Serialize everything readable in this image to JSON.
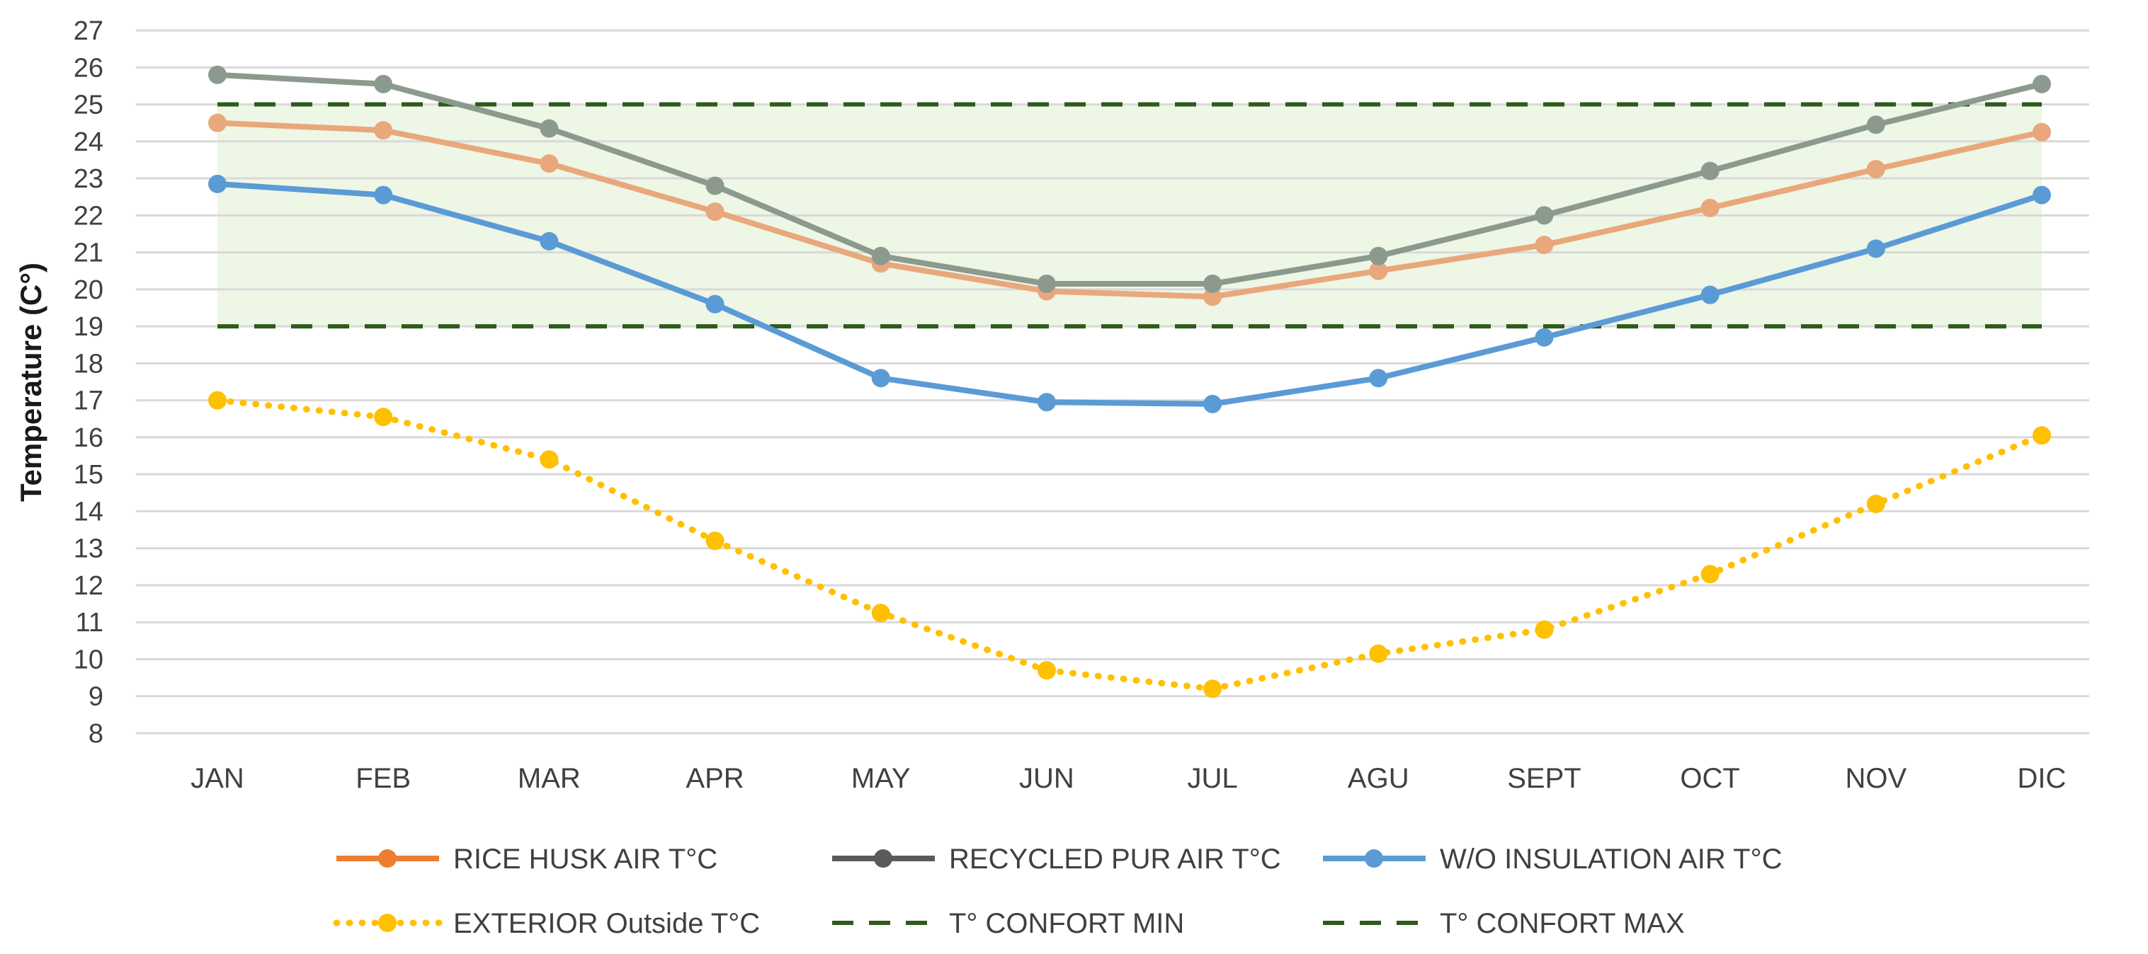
{
  "chart_data": {
    "type": "line",
    "title": "",
    "xlabel": "",
    "ylabel": "Temperature (C°)",
    "ylim": [
      8,
      27
    ],
    "yticks": [
      8,
      9,
      10,
      11,
      12,
      13,
      14,
      15,
      16,
      17,
      18,
      19,
      20,
      21,
      22,
      23,
      24,
      25,
      26,
      27
    ],
    "grid": true,
    "legend_position": "bottom",
    "categories": [
      "JAN",
      "FEB",
      "MAR",
      "APR",
      "MAY",
      "JUN",
      "JUL",
      "AGU",
      "SEPT",
      "OCT",
      "NOV",
      "DIC"
    ],
    "comfort_band": {
      "min": 19,
      "max": 25,
      "color": "#eef6e6"
    },
    "series": [
      {
        "name": "RICE HUSK AIR T°C",
        "color": "#e9a77c",
        "legend_color": "#ed7d31",
        "style": "solid",
        "values": [
          24.5,
          24.3,
          23.4,
          22.1,
          20.7,
          19.95,
          19.8,
          20.5,
          21.2,
          22.2,
          23.25,
          24.25
        ]
      },
      {
        "name": "RECYCLED PUR AIR T°C",
        "color": "#8c9a8e",
        "legend_color": "#5a5a5a",
        "style": "solid",
        "values": [
          25.8,
          25.55,
          24.35,
          22.8,
          20.9,
          20.15,
          20.15,
          20.9,
          22.0,
          23.2,
          24.45,
          25.55
        ]
      },
      {
        "name": "W/O INSULATION AIR T°C",
        "color": "#5b9bd5",
        "legend_color": "#5b9bd5",
        "style": "solid",
        "values": [
          22.85,
          22.55,
          21.3,
          19.6,
          17.6,
          16.95,
          16.9,
          17.6,
          18.7,
          19.85,
          21.1,
          22.55
        ]
      },
      {
        "name": "EXTERIOR  Outside T°C",
        "color": "#ffc000",
        "legend_color": "#ffc000",
        "style": "dotted",
        "values": [
          17.0,
          16.55,
          15.4,
          13.2,
          11.25,
          9.7,
          9.2,
          10.15,
          10.8,
          12.3,
          14.2,
          16.05
        ]
      },
      {
        "name": "T° CONFORT MIN",
        "color": "#2e5a1c",
        "legend_color": "#2e5a1c",
        "style": "dashed",
        "values": [
          19,
          19,
          19,
          19,
          19,
          19,
          19,
          19,
          19,
          19,
          19,
          19
        ]
      },
      {
        "name": "T° CONFORT  MAX",
        "color": "#2e5a1c",
        "legend_color": "#2e5a1c",
        "style": "dashed",
        "values": [
          25,
          25,
          25,
          25,
          25,
          25,
          25,
          25,
          25,
          25,
          25,
          25
        ]
      }
    ]
  }
}
